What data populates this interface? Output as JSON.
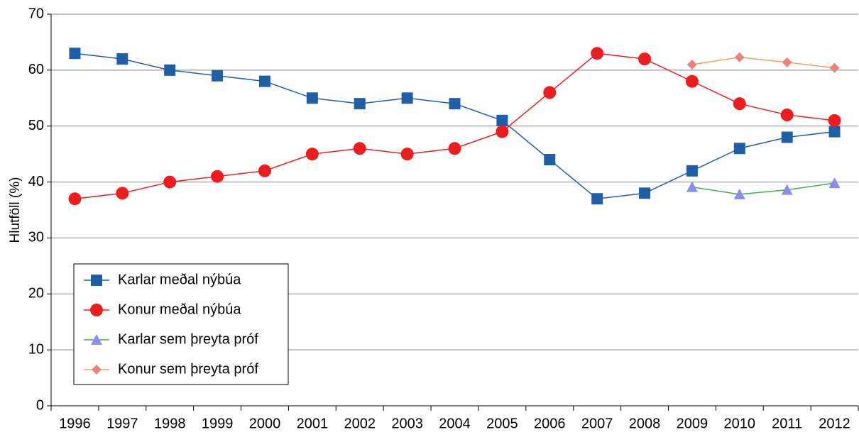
{
  "chart_data": {
    "type": "line",
    "y_label": "Hlutföll (%)",
    "categories": [
      "1996",
      "1997",
      "1998",
      "1999",
      "2000",
      "2001",
      "2002",
      "2003",
      "2004",
      "2005",
      "2006",
      "2007",
      "2008",
      "2009",
      "2010",
      "2011",
      "2012"
    ],
    "series": [
      {
        "name": "Karlar meðal nýbúa",
        "color": "#1f5fa8",
        "marker": "square",
        "values": [
          63,
          62,
          60,
          59,
          58,
          55,
          54,
          55,
          54,
          51,
          44,
          37,
          38,
          42,
          46,
          48,
          49
        ]
      },
      {
        "name": "Konur meðal nýbúa",
        "color": "#ee1c1c",
        "marker": "circle",
        "values": [
          37,
          38,
          40,
          41,
          42,
          45,
          46,
          45,
          46,
          49,
          56,
          63,
          62,
          58,
          54,
          52,
          51
        ]
      },
      {
        "name": "Karlar sem þreyta próf",
        "color": "#3cb34a",
        "marker_color": "#8c8cf0",
        "marker": "triangle",
        "values": [
          null,
          null,
          null,
          null,
          null,
          null,
          null,
          null,
          null,
          null,
          null,
          null,
          null,
          39.1,
          37.8,
          38.6,
          39.8
        ]
      },
      {
        "name": "Konur sem þreyta próf",
        "color": "#f5a05a",
        "marker_color": "#f08080",
        "marker": "diamond",
        "values": [
          null,
          null,
          null,
          null,
          null,
          null,
          null,
          null,
          null,
          null,
          null,
          null,
          null,
          61.0,
          62.3,
          61.4,
          60.4
        ]
      }
    ],
    "ylim": [
      0,
      70
    ],
    "yticks": [
      0,
      10,
      20,
      30,
      40,
      50,
      60,
      70
    ],
    "grid": true,
    "legend": "lower left"
  }
}
